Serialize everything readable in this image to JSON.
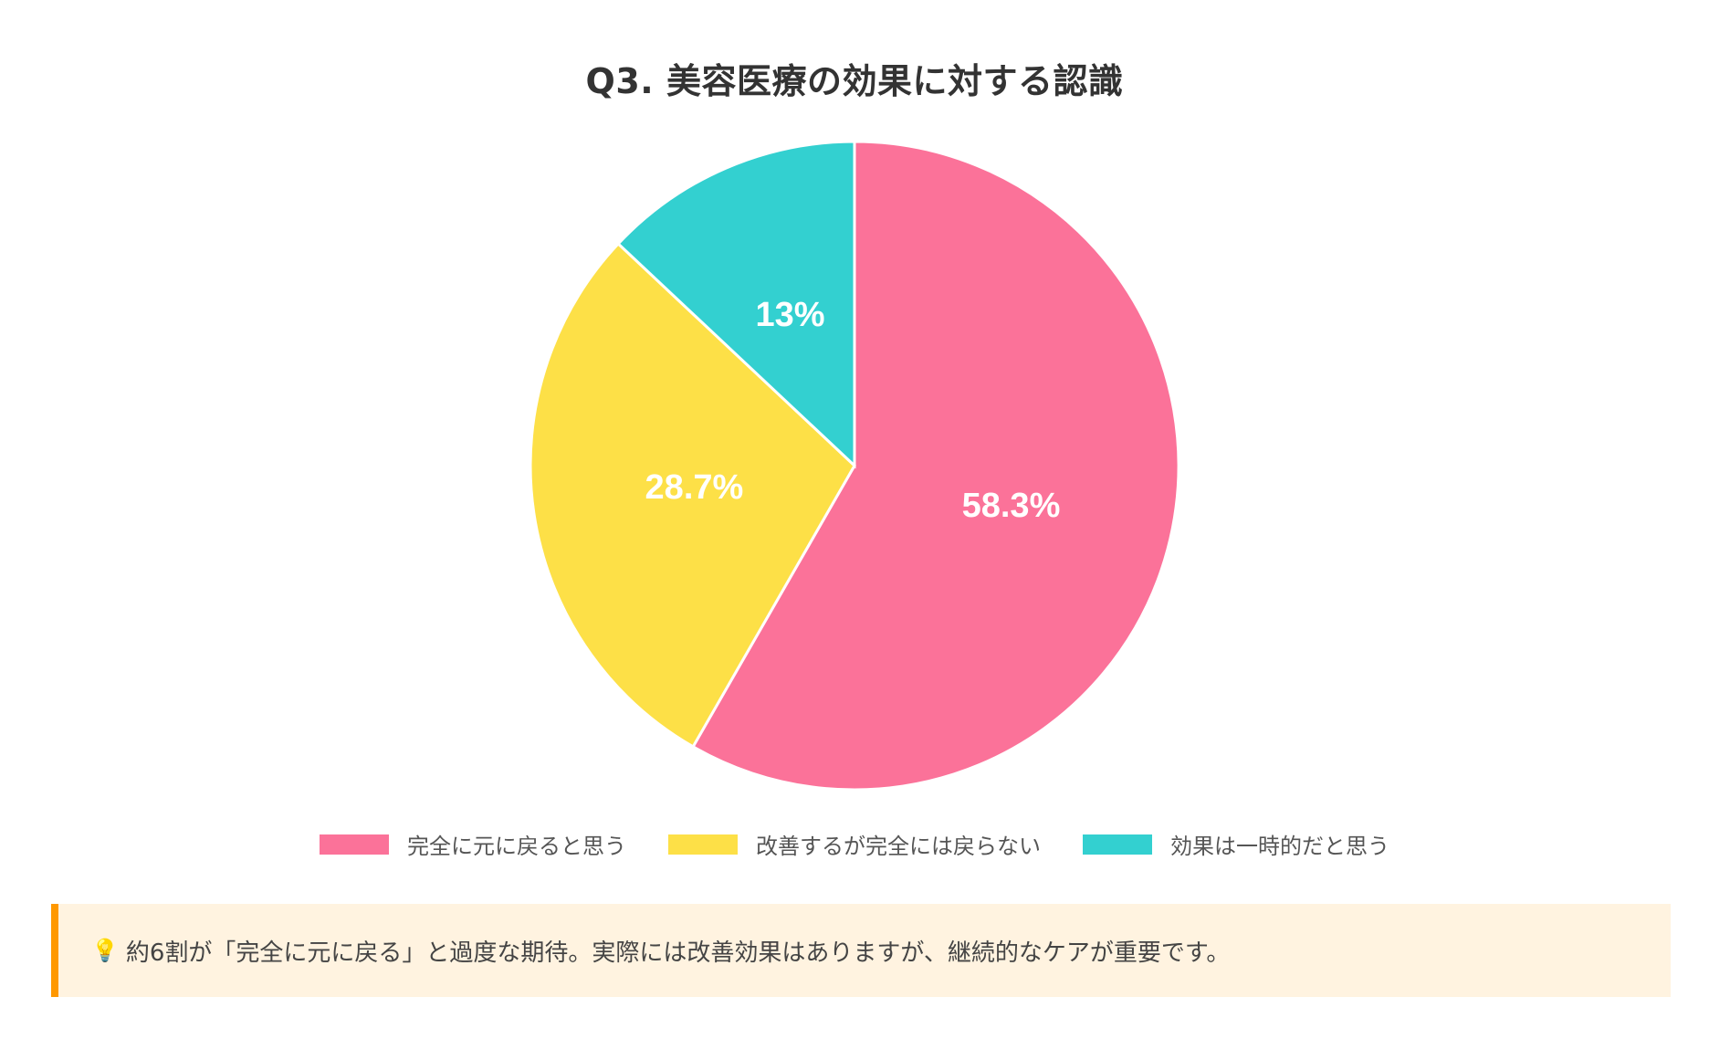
{
  "chart_data": {
    "type": "pie",
    "title": "Q3. 美容医療の効果に対する認識",
    "labels": [
      "完全に元に戻ると思う",
      "改善するが完全には戻らない",
      "効果は一時的だと思う"
    ],
    "values": [
      58.3,
      28.7,
      13
    ],
    "value_labels": [
      "58.3%",
      "28.7%",
      "13%"
    ],
    "colors": [
      "#fb7299",
      "#fde047",
      "#33d0d0"
    ],
    "legend_position": "bottom",
    "start_angle": "top",
    "direction": "clockwise"
  },
  "insight": {
    "icon": "lightbulb-icon",
    "text": "約6割が「完全に元に戻る」と過度な期待。実際には改善効果はありますが、継続的なケアが重要です。",
    "background": "#fff3e0",
    "accent": "#ff9800"
  }
}
